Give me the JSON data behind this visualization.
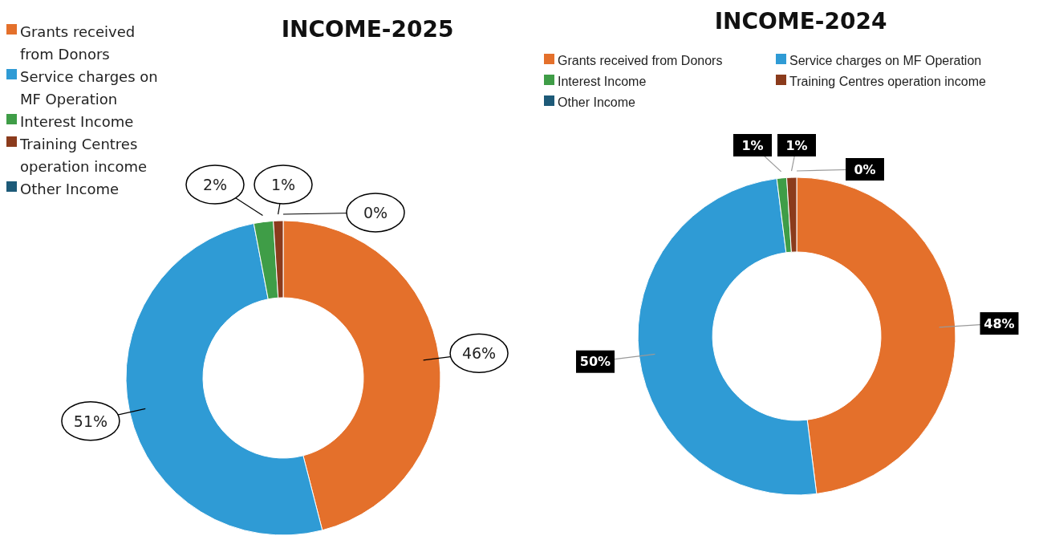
{
  "chart_data": [
    {
      "type": "donut",
      "title": "INCOME-2025",
      "categories": [
        "Grants received from Donors",
        "Service charges on MF Operation",
        "Interest Income",
        "Training Centres operation income",
        "Other Income"
      ],
      "values": [
        46,
        51,
        2,
        1,
        0
      ],
      "value_labels": [
        "46%",
        "51%",
        "2%",
        "1%",
        "0%"
      ],
      "colors": [
        "#e4702b",
        "#2f9bd5",
        "#3f9d47",
        "#8b3b1c",
        "#1d5a78"
      ],
      "legend": "top left"
    },
    {
      "type": "donut",
      "title": "INCOME-2024",
      "categories": [
        "Grants received from Donors",
        "Service charges on MF Operation",
        "Interest Income",
        "Training Centres operation income",
        "Other Income"
      ],
      "values": [
        48,
        50,
        1,
        1,
        0
      ],
      "value_labels": [
        "48%",
        "50%",
        "1%",
        "1%",
        "0%"
      ],
      "colors": [
        "#e4702b",
        "#2f9bd5",
        "#3f9d47",
        "#8b3b1c",
        "#1d5a78"
      ],
      "legend": "top"
    }
  ]
}
